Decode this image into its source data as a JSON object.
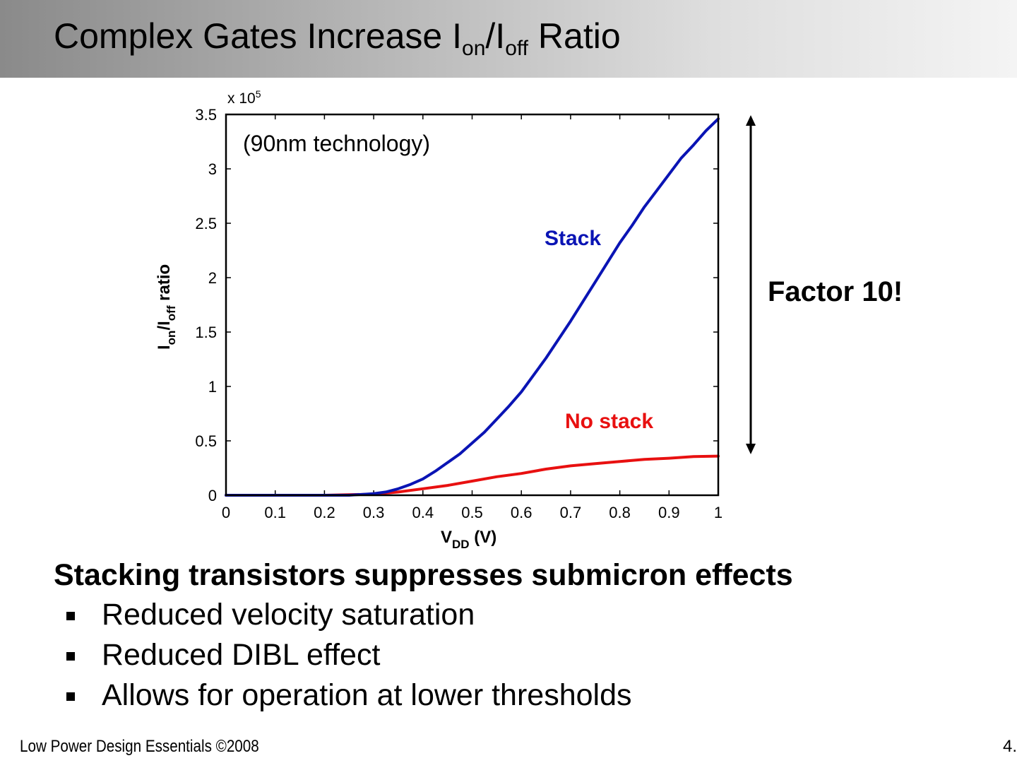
{
  "slide": {
    "title_main": "Complex Gates Increase I",
    "title_sub1": "on",
    "title_mid": "/I",
    "title_sub2": "off",
    "title_end": " Ratio"
  },
  "chart_data": {
    "type": "line",
    "multiplier_label": "x 10",
    "multiplier_exp": "5",
    "annotation": "(90nm technology)",
    "xlabel_main": "V",
    "xlabel_sub": "DD",
    "xlabel_end": " (V)",
    "ylabel_main": "I",
    "ylabel_sub1": "on",
    "ylabel_mid": "/I",
    "ylabel_sub2": "off",
    "ylabel_end": " ratio",
    "xlim": [
      0,
      1
    ],
    "ylim": [
      0,
      3.5
    ],
    "x_ticks": [
      "0",
      "0.1",
      "0.2",
      "0.3",
      "0.4",
      "0.5",
      "0.6",
      "0.7",
      "0.8",
      "0.9",
      "1"
    ],
    "y_ticks": [
      "0",
      "0.5",
      "1",
      "1.5",
      "2",
      "2.5",
      "3",
      "3.5"
    ],
    "series": [
      {
        "name": "Stack",
        "color": "#0a14b4",
        "x": [
          0,
          0.1,
          0.2,
          0.25,
          0.3,
          0.325,
          0.35,
          0.375,
          0.4,
          0.425,
          0.45,
          0.475,
          0.5,
          0.525,
          0.55,
          0.575,
          0.6,
          0.65,
          0.7,
          0.75,
          0.8,
          0.825,
          0.85,
          0.875,
          0.9,
          0.925,
          0.95,
          0.975,
          1.0
        ],
        "y": [
          0,
          0,
          0,
          0,
          0.015,
          0.03,
          0.06,
          0.1,
          0.15,
          0.22,
          0.3,
          0.38,
          0.48,
          0.58,
          0.7,
          0.82,
          0.95,
          1.26,
          1.6,
          1.96,
          2.32,
          2.48,
          2.65,
          2.8,
          2.95,
          3.1,
          3.22,
          3.35,
          3.46
        ]
      },
      {
        "name": "No stack",
        "color": "#e81010",
        "x": [
          0,
          0.2,
          0.3,
          0.35,
          0.4,
          0.45,
          0.5,
          0.55,
          0.6,
          0.65,
          0.7,
          0.75,
          0.8,
          0.85,
          0.9,
          0.95,
          1.0
        ],
        "y": [
          0,
          0,
          0.01,
          0.03,
          0.06,
          0.09,
          0.13,
          0.17,
          0.2,
          0.24,
          0.27,
          0.29,
          0.31,
          0.33,
          0.34,
          0.355,
          0.36
        ]
      }
    ],
    "arrow_label": "Factor 10!"
  },
  "content": {
    "heading": "Stacking transistors suppresses submicron effects",
    "bullets": [
      "Reduced velocity saturation",
      "Reduced DIBL effect",
      "Allows for operation at lower thresholds"
    ]
  },
  "footer": {
    "left": "Low Power Design Essentials ©2008",
    "right": "4."
  }
}
